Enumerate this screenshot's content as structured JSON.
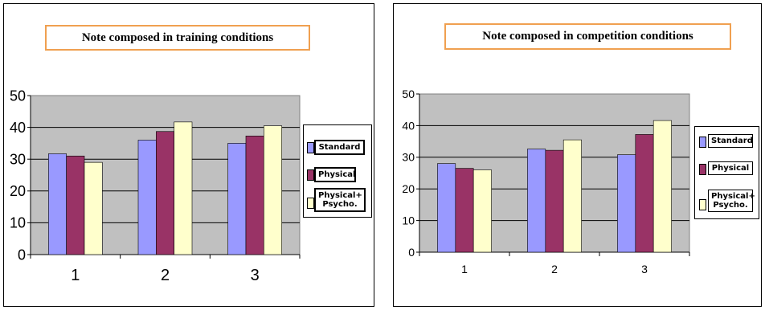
{
  "chart_data": [
    {
      "type": "bar",
      "title": "Note composed in training conditions",
      "categories": [
        "1",
        "2",
        "3"
      ],
      "series": [
        {
          "name": "Standard",
          "color": "#9999ff",
          "values": [
            31.7,
            36.0,
            35.0
          ]
        },
        {
          "name": "Physical",
          "color": "#993366",
          "values": [
            31.0,
            38.7,
            37.3
          ]
        },
        {
          "name": "Physical+ Psycho.",
          "color": "#ffffcc",
          "values": [
            29.0,
            41.7,
            40.5
          ]
        }
      ],
      "yticks": [
        "0",
        "10",
        "20",
        "30",
        "40",
        "50"
      ],
      "ylim": [
        0,
        50
      ],
      "grid": true,
      "legend_position": "right"
    },
    {
      "type": "bar",
      "title": "Note composed in competition conditions",
      "categories": [
        "1",
        "2",
        "3"
      ],
      "series": [
        {
          "name": "Standard",
          "color": "#9999ff",
          "values": [
            28.0,
            32.6,
            30.8
          ]
        },
        {
          "name": "Physical",
          "color": "#993366",
          "values": [
            26.5,
            32.2,
            37.2
          ]
        },
        {
          "name": "Physical+ Psycho.",
          "color": "#ffffcc",
          "values": [
            26.0,
            35.5,
            41.6
          ]
        }
      ],
      "yticks": [
        "0",
        "10",
        "20",
        "30",
        "40",
        "50"
      ],
      "ylim": [
        0,
        50
      ],
      "grid": true,
      "legend_position": "right"
    }
  ],
  "colors": {
    "plot_area": "#c0c0c0",
    "title_border": "#f0a050"
  }
}
